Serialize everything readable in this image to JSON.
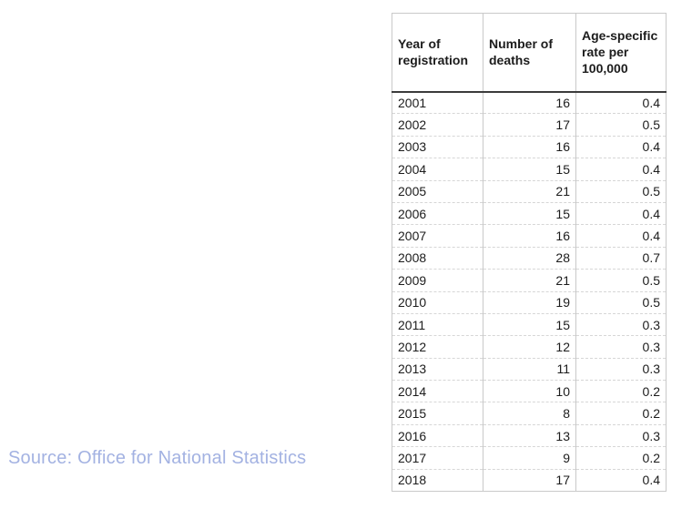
{
  "chart_data": {
    "type": "table",
    "columns": [
      "Year of registration",
      "Number of deaths",
      "Age-specific rate per 100,000"
    ],
    "rows": [
      [
        "2001",
        16,
        0.4
      ],
      [
        "2002",
        17,
        0.5
      ],
      [
        "2003",
        16,
        0.4
      ],
      [
        "2004",
        15,
        0.4
      ],
      [
        "2005",
        21,
        0.5
      ],
      [
        "2006",
        15,
        0.4
      ],
      [
        "2007",
        16,
        0.4
      ],
      [
        "2008",
        28,
        0.7
      ],
      [
        "2009",
        21,
        0.5
      ],
      [
        "2010",
        19,
        0.5
      ],
      [
        "2011",
        15,
        0.3
      ],
      [
        "2012",
        12,
        0.3
      ],
      [
        "2013",
        11,
        0.3
      ],
      [
        "2014",
        10,
        0.2
      ],
      [
        "2015",
        8,
        0.2
      ],
      [
        "2016",
        13,
        0.3
      ],
      [
        "2017",
        9,
        0.2
      ],
      [
        "2018",
        17,
        0.4
      ]
    ],
    "title": "",
    "legend": null,
    "grid": "light dashed row separators, solid column separators"
  },
  "source": {
    "label": "Source: Office for National Statistics"
  },
  "colors": {
    "source_text": "#a3b2e2",
    "header_rule": "#3b3b3b",
    "grid_line": "#c9c9c9",
    "text": "#1c1c1c",
    "background": "#ffffff"
  }
}
